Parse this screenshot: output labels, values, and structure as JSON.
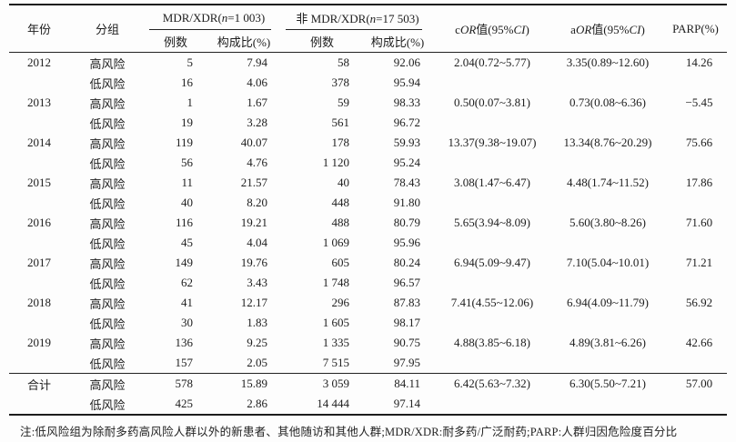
{
  "table": {
    "header": {
      "year": "年份",
      "group": "分组",
      "mdr_group": {
        "pre": "MDR/XDR(",
        "n": "n",
        "post": "=1 003)"
      },
      "nonmdr_group": {
        "pre": "非 MDR/XDR(",
        "n": "n",
        "post": "=17 503)"
      },
      "cases_mdr": "例数",
      "pct_mdr": "构成比(%)",
      "cases_non": "例数",
      "pct_non": "构成比(%)",
      "cor": {
        "t0": "c",
        "it1": "OR",
        "t1": "值(95%",
        "it2": "CI",
        "t2": ")"
      },
      "aor": {
        "t0": "a",
        "it1": "OR",
        "t1": "值(95%",
        "it2": "CI",
        "t2": ")"
      },
      "parp": "PARP(%)"
    },
    "rows": [
      {
        "year": "2012",
        "group": "高风险",
        "cases": "5",
        "pct": "7.94",
        "cases2": "58",
        "pct2": "92.06",
        "cor": "2.04(0.72~5.77)",
        "aor": "3.35(0.89~12.60)",
        "parp": "14.26"
      },
      {
        "year": "",
        "group": "低风险",
        "cases": "16",
        "pct": "4.06",
        "cases2": "378",
        "pct2": "95.94",
        "cor": "",
        "aor": "",
        "parp": ""
      },
      {
        "year": "2013",
        "group": "高风险",
        "cases": "1",
        "pct": "1.67",
        "cases2": "59",
        "pct2": "98.33",
        "cor": "0.50(0.07~3.81)",
        "aor": "0.73(0.08~6.36)",
        "parp": "−5.45"
      },
      {
        "year": "",
        "group": "低风险",
        "cases": "19",
        "pct": "3.28",
        "cases2": "561",
        "pct2": "96.72",
        "cor": "",
        "aor": "",
        "parp": ""
      },
      {
        "year": "2014",
        "group": "高风险",
        "cases": "119",
        "pct": "40.07",
        "cases2": "178",
        "pct2": "59.93",
        "cor": "13.37(9.38~19.07)",
        "aor": "13.34(8.76~20.29)",
        "parp": "75.66"
      },
      {
        "year": "",
        "group": "低风险",
        "cases": "56",
        "pct": "4.76",
        "cases2": "1 120",
        "pct2": "95.24",
        "cor": "",
        "aor": "",
        "parp": ""
      },
      {
        "year": "2015",
        "group": "高风险",
        "cases": "11",
        "pct": "21.57",
        "cases2": "40",
        "pct2": "78.43",
        "cor": "3.08(1.47~6.47)",
        "aor": "4.48(1.74~11.52)",
        "parp": "17.86"
      },
      {
        "year": "",
        "group": "低风险",
        "cases": "40",
        "pct": "8.20",
        "cases2": "448",
        "pct2": "91.80",
        "cor": "",
        "aor": "",
        "parp": ""
      },
      {
        "year": "2016",
        "group": "高风险",
        "cases": "116",
        "pct": "19.21",
        "cases2": "488",
        "pct2": "80.79",
        "cor": "5.65(3.94~8.09)",
        "aor": "5.60(3.80~8.26)",
        "parp": "71.60"
      },
      {
        "year": "",
        "group": "低风险",
        "cases": "45",
        "pct": "4.04",
        "cases2": "1 069",
        "pct2": "95.96",
        "cor": "",
        "aor": "",
        "parp": ""
      },
      {
        "year": "2017",
        "group": "高风险",
        "cases": "149",
        "pct": "19.76",
        "cases2": "605",
        "pct2": "80.24",
        "cor": "6.94(5.09~9.47)",
        "aor": "7.10(5.04~10.01)",
        "parp": "71.21"
      },
      {
        "year": "",
        "group": "低风险",
        "cases": "62",
        "pct": "3.43",
        "cases2": "1 748",
        "pct2": "96.57",
        "cor": "",
        "aor": "",
        "parp": ""
      },
      {
        "year": "2018",
        "group": "高风险",
        "cases": "41",
        "pct": "12.17",
        "cases2": "296",
        "pct2": "87.83",
        "cor": "7.41(4.55~12.06)",
        "aor": "6.94(4.09~11.79)",
        "parp": "56.92"
      },
      {
        "year": "",
        "group": "低风险",
        "cases": "30",
        "pct": "1.83",
        "cases2": "1 605",
        "pct2": "98.17",
        "cor": "",
        "aor": "",
        "parp": ""
      },
      {
        "year": "2019",
        "group": "高风险",
        "cases": "136",
        "pct": "9.25",
        "cases2": "1 335",
        "pct2": "90.75",
        "cor": "4.88(3.85~6.18)",
        "aor": "4.89(3.81~6.26)",
        "parp": "42.66"
      },
      {
        "year": "",
        "group": "低风险",
        "cases": "157",
        "pct": "2.05",
        "cases2": "7 515",
        "pct2": "97.95",
        "cor": "",
        "aor": "",
        "parp": ""
      },
      {
        "year": "合计",
        "group": "高风险",
        "cases": "578",
        "pct": "15.89",
        "cases2": "3 059",
        "pct2": "84.11",
        "cor": "6.42(5.63~7.32)",
        "aor": "6.30(5.50~7.21)",
        "parp": "57.00",
        "sep": true,
        "total": true
      },
      {
        "year": "",
        "group": "低风险",
        "cases": "425",
        "pct": "2.86",
        "cases2": "14 444",
        "pct2": "97.14",
        "cor": "",
        "aor": "",
        "parp": "",
        "total": true
      }
    ],
    "footnote": "注:低风险组为除耐多药高风险人群以外的新患者、其他随访和其他人群;MDR/XDR:耐多药/广泛耐药;PARP:人群归因危险度百分比"
  }
}
